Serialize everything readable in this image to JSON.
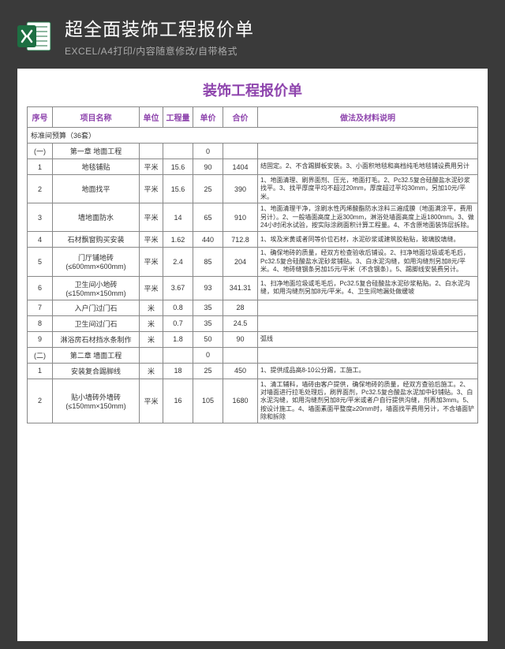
{
  "header": {
    "title": "超全面装饰工程报价单",
    "subtitle": "EXCEL/A4打印/内容随意修改/自带格式"
  },
  "doc": {
    "title": "装饰工程报价单",
    "columns": [
      "序号",
      "项目名称",
      "单位",
      "工程量",
      "单价",
      "合价",
      "做法及材料说明"
    ],
    "section_label": "标准间预算（36套）",
    "colors": {
      "accent": "#8e44ad",
      "border": "#888888",
      "header_bg": "#3a3a3a",
      "subtitle": "#aaaaaa"
    },
    "rows": [
      {
        "seq": "(一)",
        "name": "第一章 地面工程",
        "unit": "",
        "qty": "",
        "price": "0",
        "total": "",
        "desc": ""
      },
      {
        "seq": "1",
        "name": "地毯铺贴",
        "unit": "平米",
        "qty": "15.6",
        "price": "90",
        "total": "1404",
        "desc": "结固定。2、不含踢脚板安装。3、小面积地毯和高档纯毛地毯铺设费用另计"
      },
      {
        "seq": "2",
        "name": "地面找平",
        "unit": "平米",
        "qty": "15.6",
        "price": "25",
        "total": "390",
        "desc": "1、地面清理、刷界面剂、压光，地面打毛。2、Pc32.5复合硅酸盐水泥砂浆找平。3、找平厚度平均不超过20mm，厚度超过平均30mm，另加10元/平米。"
      },
      {
        "seq": "3",
        "name": "墙地面防水",
        "unit": "平米",
        "qty": "14",
        "price": "65",
        "total": "910",
        "desc": "1、地面清理干净，涂刷水性丙烯酸酯防水涂料三遍成膜（地面满涂平，费用另计）。2、一般墙面高度上返300mm，淋浴处墙面高度上返1800mm。3、做24小时闭水试验，按实际涂刷面积计算工程量。4、不含原地面装饰层拆除。"
      },
      {
        "seq": "4",
        "name": "石材飘窗购买安装",
        "unit": "平米",
        "qty": "1.62",
        "price": "440",
        "total": "712.8",
        "desc": "1、埃及米黄或者同等价位石材，水泥砂浆或建筑胶粘贴，玻璃胶填缝。"
      },
      {
        "seq": "5",
        "name": "门厅铺地砖(≤600mm×600mm)",
        "unit": "平米",
        "qty": "2.4",
        "price": "85",
        "total": "204",
        "desc": "1、确保地砖的质量，经双方检查验收后铺设。2、扫净地面垃圾或毛毛后，Pc32.5复合硅酸盐水泥砂浆铺贴。3、白水泥沟缝，如用沟缝剂另加8元/平米。4、地砖缝钢条另加15元/平米（不含钢条）。5、踢脚线安装费另计。"
      },
      {
        "seq": "6",
        "name": "卫生间小地砖(≤150mm×150mm)",
        "unit": "平米",
        "qty": "3.67",
        "price": "93",
        "total": "341.31",
        "desc": "1、扫净地面垃圾或毛毛后，Pc32.5复合硅酸盐水泥砂浆粘贴。2、白水泥沟缝，如用沟缝剂另加8元/平米。4、卫生间地漏处做缓坡"
      },
      {
        "seq": "7",
        "name": "入户门过门石",
        "unit": "米",
        "qty": "0.8",
        "price": "35",
        "total": "28",
        "desc": ""
      },
      {
        "seq": "8",
        "name": "卫生间过门石",
        "unit": "米",
        "qty": "0.7",
        "price": "35",
        "total": "24.5",
        "desc": ""
      },
      {
        "seq": "9",
        "name": "淋浴房石材挡水条制作",
        "unit": "米",
        "qty": "1.8",
        "price": "50",
        "total": "90",
        "desc": "弧线"
      },
      {
        "seq": "(二)",
        "name": "第二章 墙面工程",
        "unit": "",
        "qty": "",
        "price": "0",
        "total": "",
        "desc": ""
      },
      {
        "seq": "1",
        "name": "安装复合踢脚线",
        "unit": "米",
        "qty": "18",
        "price": "25",
        "total": "450",
        "desc": "1、提供成品高8-10公分踢，工施工。"
      },
      {
        "seq": "2",
        "name": "贴小墙砖外墙砖(≤150mm×150mm)",
        "unit": "平米",
        "qty": "16",
        "price": "105",
        "total": "1680",
        "desc": "1、清工辅料，墙砖由客户提供，确保地砖的质量，经双方查验后施工。2、对墙面进行拉毛处理后，刷界面剂，Pc32.5复合酸盐水泥加中砂铺贴。3、白水泥沟缝，如用沟缝剂另加8元/平米或者户自行提供沟缝，剂再加3mm。5、按设计施工。4、墙面素面平整度≥20mm时，墙面找平费用另计，不含墙面铲除和拆除"
      }
    ]
  }
}
